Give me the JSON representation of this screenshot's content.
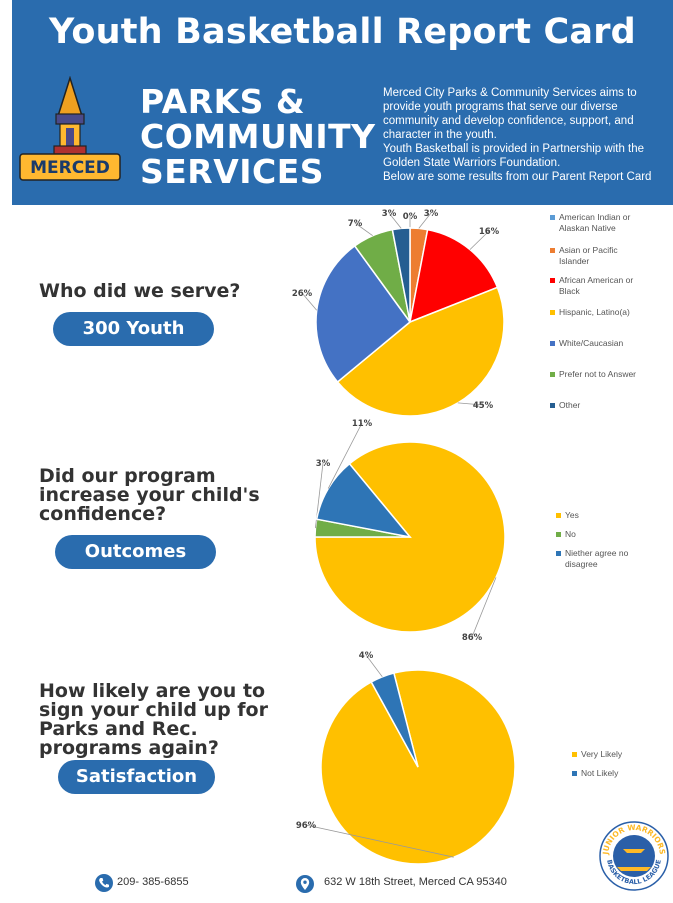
{
  "header": {
    "title": "Youth Basketball Report Card",
    "org_line1": "PARKS &",
    "org_line2": "COMMUNITY",
    "org_line3": "SERVICES",
    "logo_text": "MERCED",
    "mission": [
      "Merced City Parks & Community Services aims to",
      "provide youth programs that serve our diverse",
      "community and develop confidence, support, and",
      "character in the youth.",
      "Youth Basketball is provided in Partnership with the",
      "Golden State Warriors Foundation.",
      "Below are some results from our Parent Report Card"
    ]
  },
  "sections": [
    {
      "question_lines": [
        "Who did we serve?"
      ],
      "pill": "300 Youth"
    },
    {
      "question_lines": [
        "Did our program",
        "increase your child's",
        "confidence?"
      ],
      "pill": "Outcomes"
    },
    {
      "question_lines": [
        "How likely are you to",
        "sign your child up for",
        "Parks and Rec.",
        "programs again?"
      ],
      "pill": "Satisfaction"
    }
  ],
  "colors": {
    "brand_blue": "#2a6cae",
    "pie_blue_light": "#5b9bd5",
    "orange": "#ed7d31",
    "red": "#ff0000",
    "gold": "#ffc000",
    "royal_blue": "#4472c4",
    "green": "#70ad47",
    "navy": "#255e91",
    "mid_blue": "#2e75b6"
  },
  "chart_data": [
    {
      "type": "pie",
      "categories": [
        "American Indian or Alaskan Native",
        "Asian or Pacific Islander",
        "African American or Black",
        "Hispanic, Latino(a)",
        "White/Caucasian",
        "Prefer not to Answer",
        "Other"
      ],
      "values": [
        0,
        3,
        16,
        45,
        26,
        7,
        3
      ],
      "labels": [
        "0%",
        "3%",
        "16%",
        "45%",
        "26%",
        "7%",
        "3%"
      ],
      "colors": [
        "#5b9bd5",
        "#ed7d31",
        "#ff0000",
        "#ffc000",
        "#4472c4",
        "#70ad47",
        "#255e91"
      ],
      "legend_position": "right"
    },
    {
      "type": "pie",
      "categories": [
        "Yes",
        "No",
        "Niether agree no disagree"
      ],
      "values": [
        86,
        3,
        11
      ],
      "labels": [
        "86%",
        "3%",
        "11%"
      ],
      "colors": [
        "#ffc000",
        "#70ad47",
        "#2e75b6"
      ],
      "legend_position": "right"
    },
    {
      "type": "pie",
      "categories": [
        "Very Likely",
        "Not Likely"
      ],
      "values": [
        96,
        4
      ],
      "labels": [
        "96%",
        "4%"
      ],
      "colors": [
        "#ffc000",
        "#2e75b6"
      ],
      "legend_position": "right"
    }
  ],
  "footer": {
    "phone": "209- 385-6855",
    "address": "632 W 18th Street, Merced CA 95340",
    "badge_top": "JUNIOR WARRIORS",
    "badge_bottom": "BASKETBALL LEAGUE"
  }
}
